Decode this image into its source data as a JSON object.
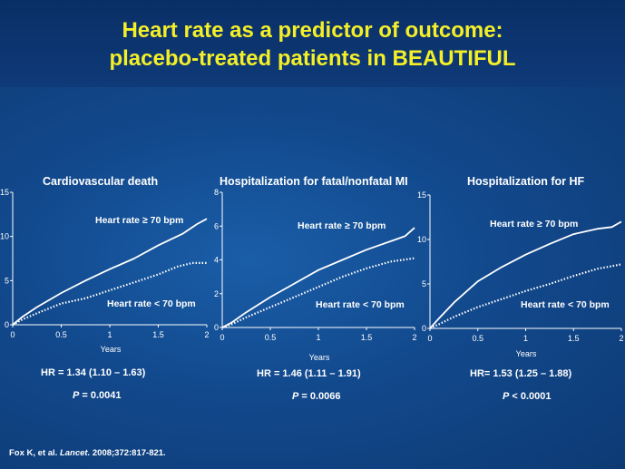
{
  "title_line1": "Heart rate as a predictor of outcome:",
  "title_line2": "placebo-treated patients in BEAUTIFUL",
  "reference": {
    "author": "Fox K, et al.",
    "journal": "Lancet.",
    "citation": "2008;372:817-821."
  },
  "colors": {
    "title": "#f4ef28",
    "background": "#12498d",
    "lines": "#ffffff"
  },
  "chart_data": [
    {
      "type": "line",
      "title": "Cardiovascular death",
      "xlabel": "Years",
      "ylabel": "",
      "xlim": [
        0,
        2
      ],
      "ylim": [
        0,
        15
      ],
      "xticks": [
        "0",
        "0.5",
        "1",
        "1.5",
        "2"
      ],
      "yticks": [
        "0",
        "5",
        "10",
        "15"
      ],
      "series": [
        {
          "name": "Heart rate ≥ 70 bpm",
          "style": "solid",
          "x": [
            0,
            0.1,
            0.25,
            0.5,
            0.75,
            1.0,
            1.25,
            1.5,
            1.75,
            1.9,
            2.0
          ],
          "y": [
            0,
            0.9,
            2.0,
            3.6,
            5.0,
            6.3,
            7.5,
            9.0,
            10.3,
            11.4,
            12.0
          ]
        },
        {
          "name": "Heart rate < 70 bpm",
          "style": "dotted",
          "x": [
            0,
            0.1,
            0.25,
            0.5,
            0.75,
            1.0,
            1.25,
            1.5,
            1.7,
            1.85,
            2.0
          ],
          "y": [
            0,
            0.6,
            1.3,
            2.4,
            3.0,
            3.9,
            4.8,
            5.7,
            6.6,
            7.0,
            7.0
          ]
        }
      ],
      "hr_label": "HR = 1.34 (1.10 – 1.63)",
      "p_label": "P",
      "p_value": "= 0.0041"
    },
    {
      "type": "line",
      "title": "Hospitalization for fatal/nonfatal MI",
      "xlabel": "Years",
      "ylabel": "",
      "xlim": [
        0,
        2
      ],
      "ylim": [
        0,
        8
      ],
      "xticks": [
        "0",
        "0.5",
        "1",
        "1.5",
        "2"
      ],
      "yticks": [
        "0",
        "2",
        "4",
        "6",
        "8"
      ],
      "series": [
        {
          "name": "Heart rate ≥ 70 bpm",
          "style": "solid",
          "x": [
            0,
            0.1,
            0.25,
            0.5,
            0.75,
            1.0,
            1.25,
            1.5,
            1.75,
            1.9,
            2.0
          ],
          "y": [
            0,
            0.3,
            0.9,
            1.8,
            2.6,
            3.4,
            4.0,
            4.6,
            5.1,
            5.4,
            5.9
          ]
        },
        {
          "name": "Heart rate < 70 bpm",
          "style": "dotted",
          "x": [
            0,
            0.1,
            0.25,
            0.5,
            0.75,
            1.0,
            1.25,
            1.5,
            1.75,
            2.0
          ],
          "y": [
            0,
            0.2,
            0.6,
            1.2,
            1.8,
            2.4,
            3.0,
            3.5,
            3.9,
            4.1
          ]
        }
      ],
      "hr_label": "HR = 1.46 (1.11 – 1.91)",
      "p_label": "P",
      "p_value": "= 0.0066"
    },
    {
      "type": "line",
      "title": "Hospitalization for HF",
      "xlabel": "Years",
      "ylabel": "",
      "xlim": [
        0,
        2
      ],
      "ylim": [
        0,
        15
      ],
      "xticks": [
        "0",
        "0.5",
        "1",
        "1.5",
        "2"
      ],
      "yticks": [
        "0",
        "5",
        "10",
        "15"
      ],
      "series": [
        {
          "name": "Heart rate ≥ 70 bpm",
          "style": "solid",
          "x": [
            0,
            0.1,
            0.25,
            0.5,
            0.75,
            1.0,
            1.25,
            1.5,
            1.75,
            1.9,
            2.0
          ],
          "y": [
            0,
            1.2,
            2.9,
            5.3,
            6.9,
            8.3,
            9.5,
            10.6,
            11.2,
            11.4,
            12.0
          ]
        },
        {
          "name": "Heart rate < 70 bpm",
          "style": "dotted",
          "x": [
            0,
            0.1,
            0.25,
            0.5,
            0.75,
            1.0,
            1.25,
            1.5,
            1.75,
            2.0
          ],
          "y": [
            0,
            0.5,
            1.3,
            2.4,
            3.3,
            4.2,
            5.0,
            5.9,
            6.7,
            7.2
          ]
        }
      ],
      "hr_label": "HR= 1.53 (1.25 – 1.88)",
      "p_label": "P",
      "p_value": "< 0.0001"
    }
  ]
}
